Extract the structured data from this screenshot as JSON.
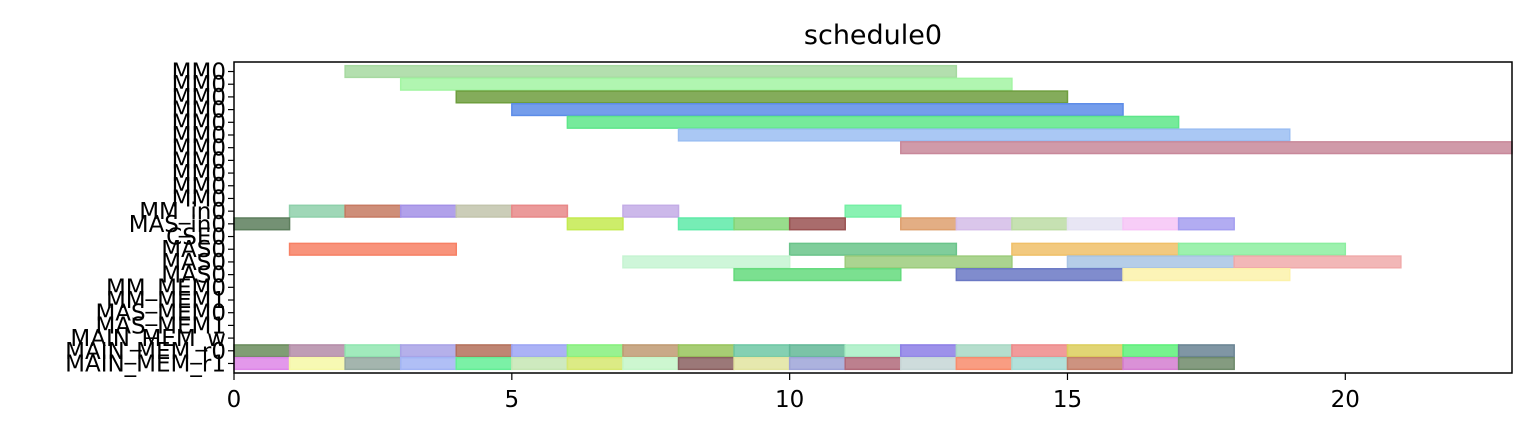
{
  "chart_data": {
    "type": "gantt",
    "title": "schedule0",
    "xlim": [
      0,
      23
    ],
    "xticks": [
      0,
      5,
      10,
      15,
      20
    ],
    "grid": false,
    "rows": [
      "MM0",
      "MM0",
      "MM0",
      "MM0",
      "MM0",
      "MM0",
      "MM0",
      "MM0",
      "MM0",
      "MM0",
      "MM0",
      "MM_in0",
      "MAS_in0",
      "CSE0",
      "MAS0",
      "MAS0",
      "MAS0",
      "MM_MEM0",
      "MM_MEM1",
      "MAS_MEM0",
      "MAS_MEM1",
      "MAIN_MEM_w",
      "MAIN_MEM_r0",
      "MAIN_MEM_r1"
    ],
    "bars": [
      {
        "row": 0,
        "start": 2,
        "end": 13,
        "color": "#a6d9a0"
      },
      {
        "row": 1,
        "start": 3,
        "end": 14,
        "color": "#a3f5a3"
      },
      {
        "row": 2,
        "start": 4,
        "end": 15,
        "color": "#6e9e3e"
      },
      {
        "row": 3,
        "start": 5,
        "end": 16,
        "color": "#5c8ce8"
      },
      {
        "row": 4,
        "start": 6,
        "end": 17,
        "color": "#5ee68a"
      },
      {
        "row": 5,
        "start": 8,
        "end": 19,
        "color": "#9bbef2"
      },
      {
        "row": 6,
        "start": 12,
        "end": 23,
        "color": "#c8889a"
      },
      {
        "row": 11,
        "start": 1,
        "end": 2,
        "color": "#8ed0aa"
      },
      {
        "row": 11,
        "start": 2,
        "end": 3,
        "color": "#c67a62"
      },
      {
        "row": 11,
        "start": 3,
        "end": 4,
        "color": "#a390e6"
      },
      {
        "row": 11,
        "start": 4,
        "end": 5,
        "color": "#c2c4ac"
      },
      {
        "row": 11,
        "start": 5,
        "end": 6,
        "color": "#e88888"
      },
      {
        "row": 11,
        "start": 7,
        "end": 8,
        "color": "#c3ace6"
      },
      {
        "row": 11,
        "start": 11,
        "end": 12,
        "color": "#74f0a4"
      },
      {
        "row": 12,
        "start": 0,
        "end": 1,
        "color": "#5c7e5c"
      },
      {
        "row": 12,
        "start": 6,
        "end": 7,
        "color": "#c4ea50"
      },
      {
        "row": 12,
        "start": 8,
        "end": 9,
        "color": "#5eeaa8"
      },
      {
        "row": 12,
        "start": 9,
        "end": 10,
        "color": "#86d678"
      },
      {
        "row": 12,
        "start": 10,
        "end": 11,
        "color": "#9a5252"
      },
      {
        "row": 12,
        "start": 12,
        "end": 13,
        "color": "#dea06e"
      },
      {
        "row": 12,
        "start": 13,
        "end": 14,
        "color": "#d4bce8"
      },
      {
        "row": 12,
        "start": 14,
        "end": 15,
        "color": "#bcdca4"
      },
      {
        "row": 12,
        "start": 15,
        "end": 16,
        "color": "#e4e2f2"
      },
      {
        "row": 12,
        "start": 16,
        "end": 17,
        "color": "#f6c4f6"
      },
      {
        "row": 12,
        "start": 17,
        "end": 18,
        "color": "#a49ef0"
      },
      {
        "row": 14,
        "start": 1,
        "end": 4,
        "color": "#f78064"
      },
      {
        "row": 14,
        "start": 10,
        "end": 13,
        "color": "#6ac48a"
      },
      {
        "row": 14,
        "start": 14,
        "end": 17,
        "color": "#f0c068"
      },
      {
        "row": 14,
        "start": 17,
        "end": 20,
        "color": "#8ceea0"
      },
      {
        "row": 15,
        "start": 7,
        "end": 10,
        "color": "#c6f4d2"
      },
      {
        "row": 15,
        "start": 11,
        "end": 14,
        "color": "#9ccc7c"
      },
      {
        "row": 15,
        "start": 15,
        "end": 18,
        "color": "#a8c4e4"
      },
      {
        "row": 15,
        "start": 18,
        "end": 21,
        "color": "#f0aaaa"
      },
      {
        "row": 16,
        "start": 9,
        "end": 12,
        "color": "#64da7c"
      },
      {
        "row": 16,
        "start": 13,
        "end": 16,
        "color": "#6a78c4"
      },
      {
        "row": 16,
        "start": 16,
        "end": 19,
        "color": "#fcf2aa"
      },
      {
        "row": 22,
        "start": 0,
        "end": 1,
        "color": "#6a8c5c"
      },
      {
        "row": 22,
        "start": 1,
        "end": 2,
        "color": "#b48ca8"
      },
      {
        "row": 22,
        "start": 2,
        "end": 3,
        "color": "#90e6b0"
      },
      {
        "row": 22,
        "start": 3,
        "end": 4,
        "color": "#a8a2e6"
      },
      {
        "row": 22,
        "start": 4,
        "end": 5,
        "color": "#b4705a"
      },
      {
        "row": 22,
        "start": 5,
        "end": 6,
        "color": "#9ca4f4"
      },
      {
        "row": 22,
        "start": 6,
        "end": 7,
        "color": "#86f07c"
      },
      {
        "row": 22,
        "start": 7,
        "end": 8,
        "color": "#c09a72"
      },
      {
        "row": 22,
        "start": 8,
        "end": 9,
        "color": "#98c45c"
      },
      {
        "row": 22,
        "start": 9,
        "end": 10,
        "color": "#6ec8a4"
      },
      {
        "row": 22,
        "start": 10,
        "end": 11,
        "color": "#64b898"
      },
      {
        "row": 22,
        "start": 11,
        "end": 12,
        "color": "#a8eec4"
      },
      {
        "row": 22,
        "start": 12,
        "end": 13,
        "color": "#8c7ee6"
      },
      {
        "row": 22,
        "start": 13,
        "end": 14,
        "color": "#a8d8c4"
      },
      {
        "row": 22,
        "start": 14,
        "end": 15,
        "color": "#ee8a8a"
      },
      {
        "row": 22,
        "start": 15,
        "end": 16,
        "color": "#dcce5c"
      },
      {
        "row": 22,
        "start": 16,
        "end": 17,
        "color": "#5ef07a"
      },
      {
        "row": 22,
        "start": 17,
        "end": 18,
        "color": "#6a8494"
      },
      {
        "row": 23,
        "start": 0,
        "end": 1,
        "color": "#de86e8"
      },
      {
        "row": 23,
        "start": 1,
        "end": 2,
        "color": "#f6f8a6"
      },
      {
        "row": 23,
        "start": 2,
        "end": 3,
        "color": "#94a8a0"
      },
      {
        "row": 23,
        "start": 3,
        "end": 4,
        "color": "#a2b4f4"
      },
      {
        "row": 23,
        "start": 4,
        "end": 5,
        "color": "#64ee96"
      },
      {
        "row": 23,
        "start": 5,
        "end": 6,
        "color": "#c6e6b4"
      },
      {
        "row": 23,
        "start": 6,
        "end": 7,
        "color": "#d6e870"
      },
      {
        "row": 23,
        "start": 7,
        "end": 8,
        "color": "#c4f6c8"
      },
      {
        "row": 23,
        "start": 8,
        "end": 9,
        "color": "#8a6060"
      },
      {
        "row": 23,
        "start": 9,
        "end": 10,
        "color": "#e2e4a0"
      },
      {
        "row": 23,
        "start": 10,
        "end": 11,
        "color": "#9ea4d8"
      },
      {
        "row": 23,
        "start": 11,
        "end": 12,
        "color": "#b06a7a"
      },
      {
        "row": 23,
        "start": 12,
        "end": 13,
        "color": "#c6d6d6"
      },
      {
        "row": 23,
        "start": 13,
        "end": 14,
        "color": "#f88c6c"
      },
      {
        "row": 23,
        "start": 14,
        "end": 15,
        "color": "#a6dcd4"
      },
      {
        "row": 23,
        "start": 15,
        "end": 16,
        "color": "#c4806a"
      },
      {
        "row": 23,
        "start": 16,
        "end": 17,
        "color": "#d47ed0"
      },
      {
        "row": 23,
        "start": 17,
        "end": 18,
        "color": "#6e8a6a"
      }
    ]
  }
}
